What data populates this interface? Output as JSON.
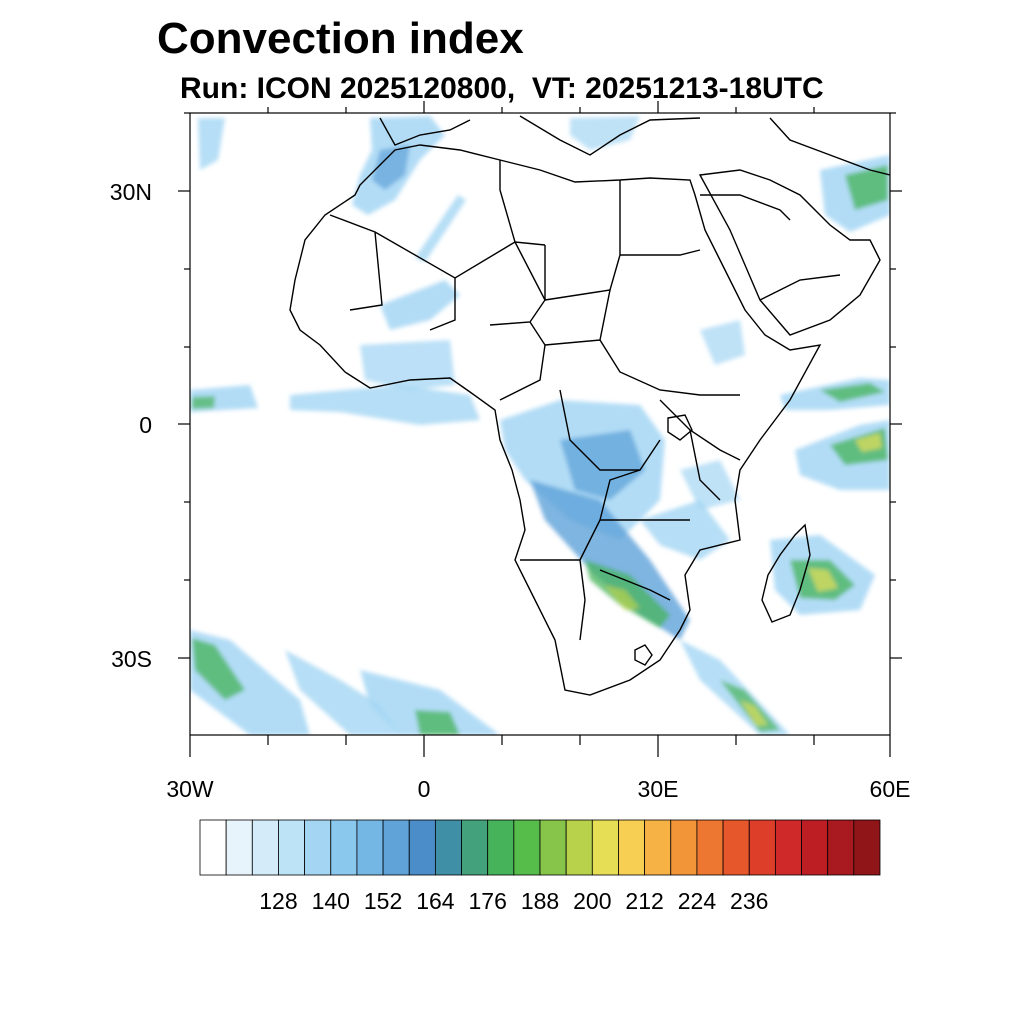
{
  "title": "Convection index",
  "subtitle": "Run: ICON 2025120800,  VT: 20251213-18UTC",
  "axes": {
    "lat_labels": [
      "30N",
      "0",
      "30S"
    ],
    "lon_labels": [
      "30W",
      "0",
      "30E",
      "60E"
    ]
  },
  "colorbar": {
    "labels": [
      "128",
      "140",
      "152",
      "164",
      "176",
      "188",
      "200",
      "212",
      "224",
      "236"
    ],
    "colors": [
      "#ffffff",
      "#e8f4fc",
      "#d4ecf9",
      "#bde3f7",
      "#a4d6f4",
      "#8ac8ee",
      "#74b7e4",
      "#5fa3d9",
      "#4a8dc8",
      "#3f8fa6",
      "#43a27c",
      "#46b35a",
      "#56bc4a",
      "#86c54a",
      "#b8d24c",
      "#e6de55",
      "#f7cf52",
      "#f7b246",
      "#f29438",
      "#ed7631",
      "#e6582c",
      "#dc3e2a",
      "#cf2929",
      "#bd1e24",
      "#a81a1f",
      "#8f1519"
    ]
  },
  "colors": {
    "light": "#a4d6f4",
    "mid": "#5fa3d9",
    "green": "#46b35a",
    "yellow": "#e6de55",
    "orange": "#f29438",
    "border": "#000000"
  }
}
